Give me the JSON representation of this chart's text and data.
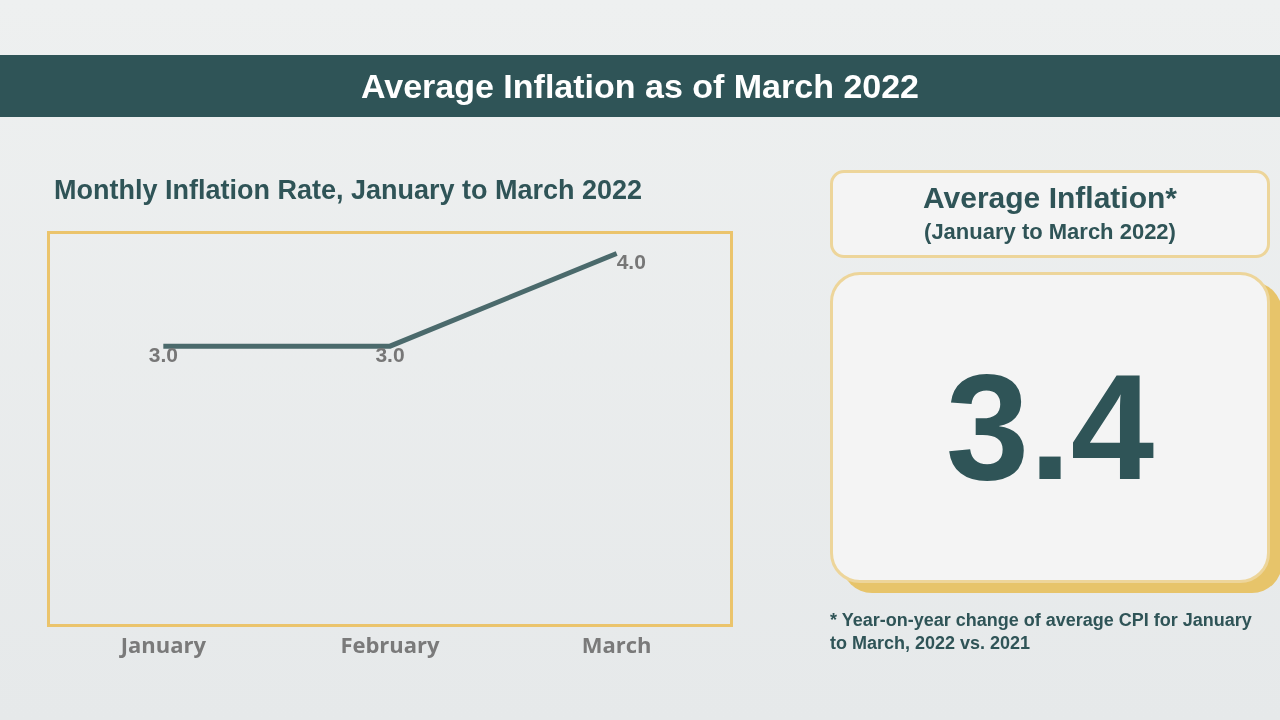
{
  "chart_data": [
    {
      "type": "line",
      "title": "Average Inflation as of March 2022",
      "subtitle": "Monthly Inflation Rate, January to March 2022",
      "categories": [
        "January",
        "February",
        "March"
      ],
      "series": [
        {
          "color": "#4b6a6c",
          "values": [
            3.0,
            3.0,
            4.0
          ],
          "value_labels": [
            "3.0",
            "3.0",
            "4.0"
          ]
        }
      ],
      "tick_labels": "x",
      "grid": false,
      "legend": false,
      "marker": "none",
      "line_style": "solid"
    },
    {
      "type": "other",
      "title": "Average Inflation*",
      "subtitle": "(January to March 2022)",
      "annotations": [
        "3.4",
        "* Year-on-year change of average CPI for January to March, 2022 vs. 2021"
      ]
    }
  ]
}
